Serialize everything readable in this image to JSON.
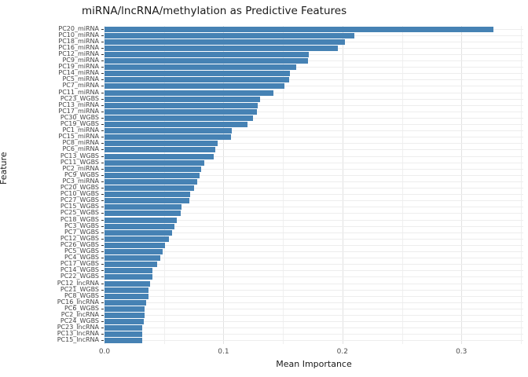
{
  "chart_data": {
    "type": "bar",
    "orientation": "horizontal",
    "title": "miRNA/lncRNA/methylation as Predictive Features",
    "xlabel": "Mean Importance",
    "ylabel": "Feature",
    "legend": "none",
    "grid": "on",
    "bar_color": "#4682b4",
    "xlim": [
      0,
      0.352
    ],
    "x_tick_labels": [
      "0.0",
      "0.1",
      "0.2",
      "0.3"
    ],
    "x_tick_values": [
      0,
      0.1,
      0.2,
      0.3
    ],
    "x_minor_values": [
      0.05,
      0.15,
      0.25,
      0.35
    ],
    "categories": [
      "PC20_miRNA",
      "PC10_miRNA",
      "PC18_miRNA",
      "PC16_miRNA",
      "PC12_miRNA",
      "PC9_miRNA",
      "PC19_miRNA",
      "PC14_miRNA",
      "PC5_miRNA",
      "PC7_miRNA",
      "PC11_miRNA",
      "PC23_WGBS",
      "PC13_miRNA",
      "PC17_miRNA",
      "PC30_WGBS",
      "PC19_WGBS",
      "PC1_miRNA",
      "PC15_miRNA",
      "PC8_miRNA",
      "PC6_miRNA",
      "PC13_WGBS",
      "PC11_WGBS",
      "PC2_miRNA",
      "PC9_WGBS",
      "PC3_miRNA",
      "PC20_WGBS",
      "PC10_WGBS",
      "PC27_WGBS",
      "PC15_WGBS",
      "PC25_WGBS",
      "PC18_WGBS",
      "PC3_WGBS",
      "PC7_WGBS",
      "PC12_WGBS",
      "PC26_WGBS",
      "PC5_WGBS",
      "PC4_WGBS",
      "PC17_WGBS",
      "PC14_WGBS",
      "PC22_WGBS",
      "PC12_lncRNA",
      "PC21_WGBS",
      "PC8_WGBS",
      "PC16_lncRNA",
      "PC6_WGBS",
      "PC2_lncRNA",
      "PC24_WGBS",
      "PC23_lncRNA",
      "PC13_lncRNA",
      "PC15_lncRNA"
    ],
    "values": [
      0.327,
      0.21,
      0.202,
      0.196,
      0.172,
      0.171,
      0.161,
      0.156,
      0.155,
      0.151,
      0.142,
      0.131,
      0.129,
      0.128,
      0.125,
      0.12,
      0.107,
      0.106,
      0.095,
      0.093,
      0.092,
      0.084,
      0.081,
      0.08,
      0.078,
      0.075,
      0.072,
      0.071,
      0.065,
      0.064,
      0.061,
      0.059,
      0.057,
      0.054,
      0.051,
      0.049,
      0.047,
      0.044,
      0.04,
      0.04,
      0.038,
      0.037,
      0.037,
      0.035,
      0.034,
      0.034,
      0.033,
      0.032,
      0.032,
      0.032
    ],
    "colors": {
      "grid_major": "#e2e2e2",
      "grid_minor": "#f0f0f0",
      "grid_row": "#ededed",
      "tick_text": "#4d4d4d",
      "axis_text": "#1a1a1a"
    }
  }
}
